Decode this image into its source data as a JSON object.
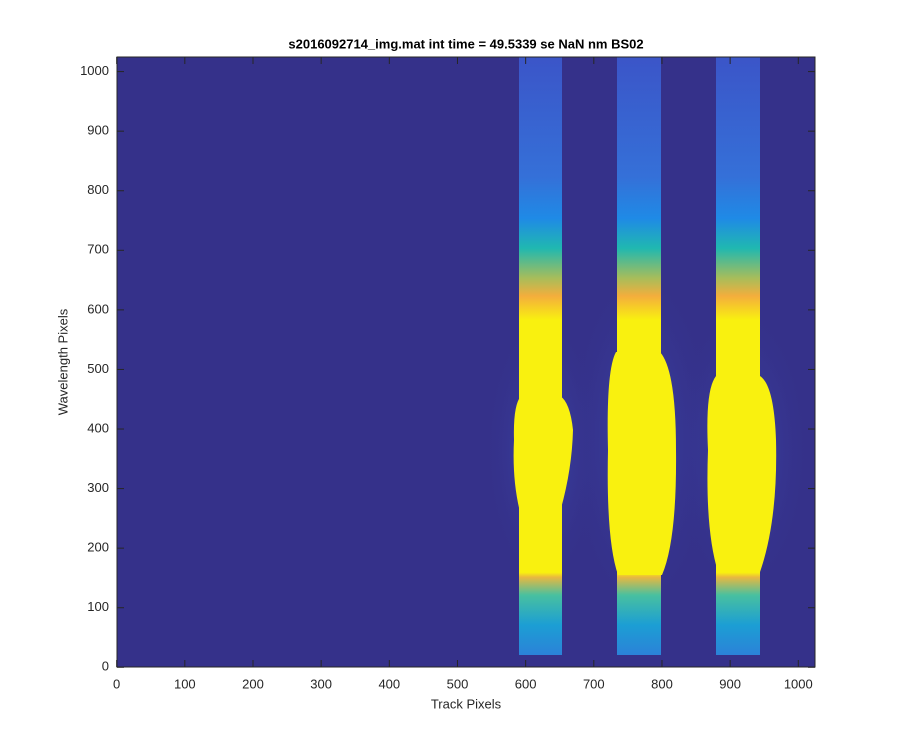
{
  "chart_data": {
    "type": "image",
    "title": "s2016092714_img.mat int time = 49.5339 se  NaN nm BS02",
    "x_label": "Track Pixels",
    "y_label": "Wavelength Pixels",
    "xlim": [
      0.5,
      1024.5
    ],
    "ylim": [
      0.5,
      1024.5
    ],
    "xticks": [
      0,
      100,
      200,
      300,
      400,
      500,
      600,
      700,
      800,
      900,
      1000
    ],
    "yticks": [
      0,
      100,
      200,
      300,
      400,
      500,
      600,
      700,
      800,
      900,
      1000
    ]
  }
}
